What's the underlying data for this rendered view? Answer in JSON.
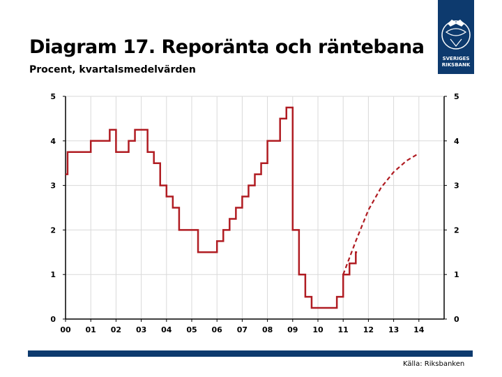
{
  "title": "Diagram 17. Reporänta och räntebana",
  "subtitle": "Procent, kvartalsmedelvärden",
  "source": "Källa: Riksbanken",
  "logo": {
    "line1": "SVERIGES",
    "line2": "RIKSBANK"
  },
  "colors": {
    "series": "#b01c22",
    "brand": "#0d3a6e",
    "grid": "#d9d9d9",
    "axis": "#000000"
  },
  "chart_data": {
    "type": "line",
    "title": "Diagram 17. Reporänta och räntebana",
    "subtitle": "Procent, kvartalsmedelvärden",
    "xlabel": "",
    "ylabel": "",
    "xlim": [
      2000,
      2015
    ],
    "ylim": [
      0,
      5
    ],
    "y_ticks": [
      0,
      1,
      2,
      3,
      4,
      5
    ],
    "y_tick_labels": [
      "0",
      "1",
      "2",
      "3",
      "4",
      "5"
    ],
    "x_ticks": [
      2000,
      2001,
      2002,
      2003,
      2004,
      2005,
      2006,
      2007,
      2008,
      2009,
      2010,
      2011,
      2012,
      2013,
      2014
    ],
    "x_tick_labels": [
      "00",
      "01",
      "02",
      "03",
      "04",
      "05",
      "06",
      "07",
      "08",
      "09",
      "10",
      "11",
      "12",
      "13",
      "14"
    ],
    "grid": true,
    "right_axis": true,
    "series": [
      {
        "name": "Reporänta",
        "style": "solid-step",
        "x": [
          2000.0,
          2000.08,
          2001.0,
          2001.5,
          2001.75,
          2002.0,
          2002.25,
          2002.5,
          2002.75,
          2002.92,
          2003.25,
          2003.5,
          2003.75,
          2004.0,
          2004.25,
          2004.5,
          2005.0,
          2005.25,
          2005.5,
          2006.0,
          2006.25,
          2006.5,
          2006.75,
          2007.0,
          2007.25,
          2007.5,
          2007.75,
          2008.0,
          2008.5,
          2008.75,
          2009.0,
          2009.25,
          2009.5,
          2009.75,
          2010.0,
          2010.5,
          2010.75,
          2011.0,
          2011.25,
          2011.5
        ],
        "y": [
          3.25,
          3.75,
          4.0,
          4.0,
          4.25,
          3.75,
          3.75,
          4.0,
          4.25,
          4.25,
          3.75,
          3.5,
          3.0,
          2.75,
          2.5,
          2.0,
          2.0,
          1.5,
          1.5,
          1.75,
          2.0,
          2.25,
          2.5,
          2.75,
          3.0,
          3.25,
          3.5,
          4.0,
          4.5,
          4.75,
          2.0,
          1.0,
          0.5,
          0.25,
          0.25,
          0.25,
          0.5,
          1.0,
          1.25,
          1.5
        ]
      },
      {
        "name": "Räntebana",
        "style": "dashed",
        "x": [
          2011.0,
          2011.5,
          2012.0,
          2012.5,
          2013.0,
          2013.5,
          2014.0
        ],
        "y": [
          1.0,
          1.75,
          2.45,
          2.95,
          3.3,
          3.55,
          3.72
        ]
      }
    ]
  }
}
